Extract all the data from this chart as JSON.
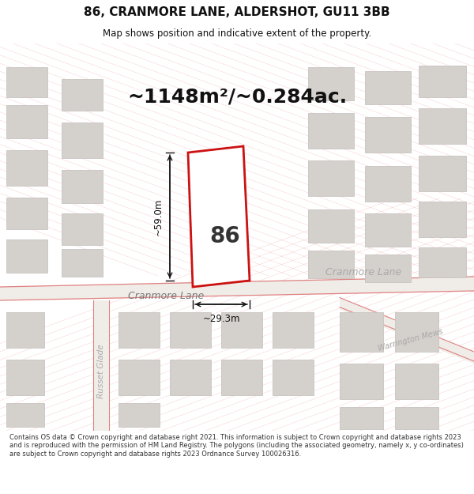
{
  "title": "86, CRANMORE LANE, ALDERSHOT, GU11 3BB",
  "subtitle": "Map shows position and indicative extent of the property.",
  "area_text": "~1148m²/~0.284ac.",
  "house_number": "86",
  "dim_width": "~29.3m",
  "dim_height": "~59.0m",
  "street_label_cranmore_lower": "Cranmore Lane",
  "street_label_cranmore_upper": "Cranmore Lane",
  "street_label_side": "Russet Glade",
  "street_label_warrington": "Warrington Mews",
  "footer": "Contains OS data © Crown copyright and database right 2021. This information is subject to Crown copyright and database rights 2023 and is reproduced with the permission of HM Land Registry. The polygons (including the associated geometry, namely x, y co-ordinates) are subject to Crown copyright and database rights 2023 Ordnance Survey 100026316.",
  "map_bg": "#f9f8f7",
  "road_line_color": "#e08080",
  "building_fill": "#d4d0cc",
  "building_edge": "#c8c4c0",
  "prop_fill": "#ffffff",
  "prop_edge": "#cc1111",
  "dim_color": "#111111",
  "text_dark": "#222222",
  "text_road": "#888888",
  "footer_color": "#333333",
  "title_color": "#111111"
}
